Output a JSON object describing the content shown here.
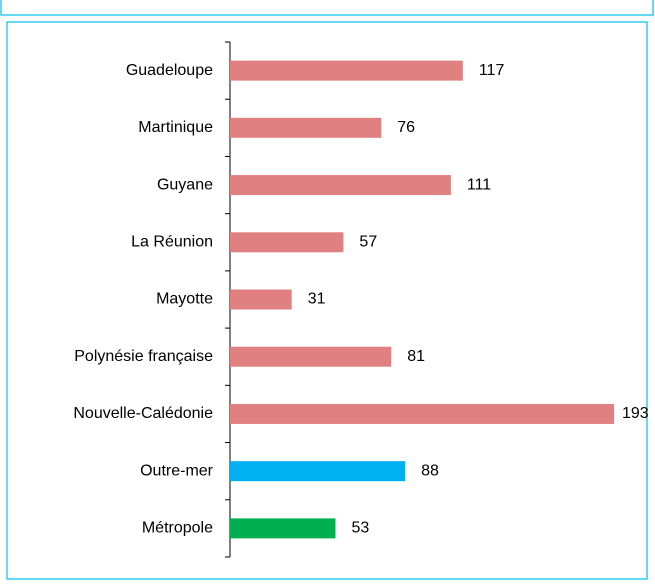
{
  "chart_data": {
    "type": "bar",
    "orientation": "horizontal",
    "categories": [
      "Guadeloupe",
      "Martinique",
      "Guyane",
      "La Réunion",
      "Mayotte",
      "Polynésie française",
      "Nouvelle-Calédonie",
      "Outre-mer",
      "Métropole"
    ],
    "values": [
      117,
      76,
      111,
      57,
      31,
      81,
      193,
      88,
      53
    ],
    "colors": [
      "#e08080",
      "#e08080",
      "#e08080",
      "#e08080",
      "#e08080",
      "#e08080",
      "#e08080",
      "#00b0f0",
      "#00b050"
    ]
  }
}
